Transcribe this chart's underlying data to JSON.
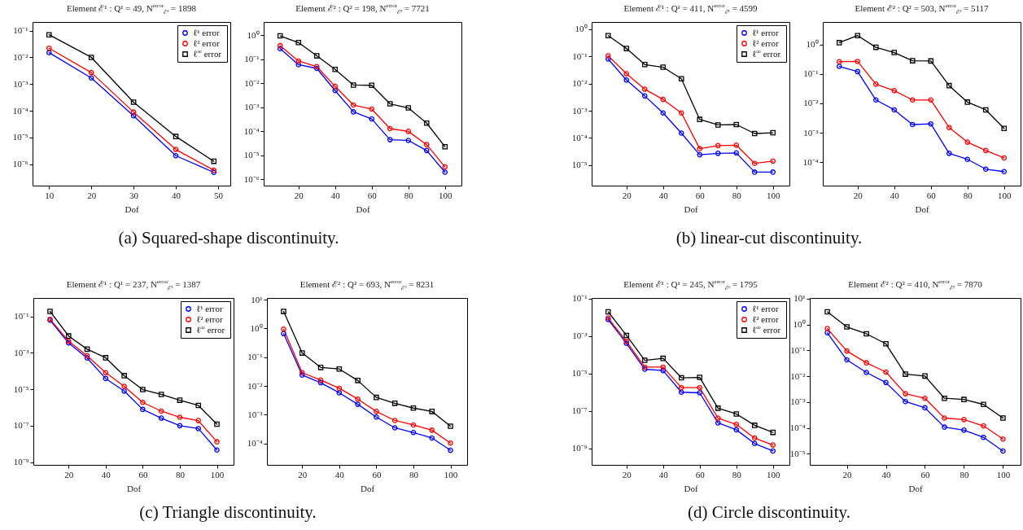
{
  "chart_data": [
    {
      "type": "line",
      "title": "Element ℰ¹ : Q¹ = 49, N$^{error}$$_{ℰ¹}$ = 1898",
      "xlabel": "Dof",
      "annotations": [
        "(a) Squared-shape discontinuity."
      ],
      "log": "y",
      "legend": "top right",
      "line_style": "solid",
      "xlim": [
        6.1,
        52.9
      ],
      "xticks": [
        10,
        20,
        30,
        40,
        50
      ],
      "ylim": [
        1.6e-07,
        0.21
      ],
      "yticks": [
        {
          "value": 1e-06,
          "label": "10⁻⁶"
        },
        {
          "value": 1e-05,
          "label": "10⁻⁵"
        },
        {
          "value": 0.0001,
          "label": "10⁻⁴"
        },
        {
          "value": 0.001,
          "label": "10⁻³"
        },
        {
          "value": 0.01,
          "label": "10⁻²"
        },
        {
          "value": 0.1,
          "label": "10⁻¹"
        }
      ],
      "x": [
        10,
        20,
        30,
        40,
        49
      ],
      "series": [
        {
          "name": "ℓ¹ error",
          "color": "#0000ff",
          "marker": "circle",
          "values": [
            0.015,
            0.0017,
            6.5e-05,
            2.1e-06,
            5e-07
          ]
        },
        {
          "name": "ℓ² error",
          "color": "#ff0000",
          "marker": "circle",
          "values": [
            0.022,
            0.0027,
            9e-05,
            3.6e-06,
            6e-07
          ]
        },
        {
          "name": "ℓ$^{∞}$ error",
          "color": "#000000",
          "marker": "square",
          "values": [
            0.07,
            0.01,
            0.00021,
            1.1e-05,
            1.3e-06
          ]
        }
      ]
    },
    {
      "type": "line",
      "title": "Element ℰ² : Q² = 198, N$^{error}$$_{ℰ²}$ = 7721",
      "xlabel": "Dof",
      "log": "y",
      "line_style": "solid",
      "xlim": [
        1,
        109
      ],
      "xticks": [
        20,
        40,
        60,
        80,
        100
      ],
      "ylim": [
        5.5e-07,
        3.6
      ],
      "yticks": [
        {
          "value": 1e-06,
          "label": "10⁻⁶"
        },
        {
          "value": 1e-05,
          "label": "10⁻⁵"
        },
        {
          "value": 0.0001,
          "label": "10⁻⁴"
        },
        {
          "value": 0.001,
          "label": "10⁻³"
        },
        {
          "value": 0.01,
          "label": "10⁻²"
        },
        {
          "value": 0.1,
          "label": "10⁻¹"
        },
        {
          "value": 1,
          "label": "10⁰"
        }
      ],
      "x": [
        10,
        20,
        30,
        40,
        50,
        60,
        70,
        80,
        90,
        100
      ],
      "series": [
        {
          "color": "#0000ff",
          "marker": "circle",
          "values": [
            0.28,
            0.06,
            0.042,
            0.005,
            0.00065,
            0.00033,
            4.5e-05,
            4.2e-05,
            1.6e-05,
            2e-06
          ]
        },
        {
          "color": "#ff0000",
          "marker": "circle",
          "values": [
            0.37,
            0.085,
            0.05,
            0.0075,
            0.00125,
            0.00085,
            0.00013,
            0.0001,
            2.8e-05,
            3.3e-06
          ]
        },
        {
          "color": "#000000",
          "marker": "square",
          "values": [
            0.95,
            0.5,
            0.14,
            0.038,
            0.0085,
            0.0083,
            0.0014,
            0.00095,
            0.00022,
            2.3e-05
          ]
        }
      ]
    },
    {
      "type": "line",
      "title": "Element ℰ¹ : Q¹ = 411, N$^{error}$$_{ℰ¹}$ = 4599",
      "xlabel": "Dof",
      "annotations": [
        "(b) linear-cut discontinuity."
      ],
      "log": "y",
      "legend": "top right",
      "line_style": "solid",
      "xlim": [
        1,
        109
      ],
      "xticks": [
        20,
        40,
        60,
        80,
        100
      ],
      "ylim": [
        1.75e-06,
        1.85
      ],
      "yticks": [
        {
          "value": 1e-05,
          "label": "10⁻⁵"
        },
        {
          "value": 0.0001,
          "label": "10⁻⁴"
        },
        {
          "value": 0.001,
          "label": "10⁻³"
        },
        {
          "value": 0.01,
          "label": "10⁻²"
        },
        {
          "value": 0.1,
          "label": "10⁻¹"
        },
        {
          "value": 1,
          "label": "10⁰"
        }
      ],
      "x": [
        10,
        20,
        30,
        40,
        50,
        60,
        70,
        80,
        90,
        100
      ],
      "series": [
        {
          "name": "ℓ¹ error",
          "color": "#0000ff",
          "marker": "circle",
          "values": [
            0.08,
            0.0135,
            0.0035,
            0.00083,
            0.00015,
            2.4e-05,
            2.7e-05,
            2.8e-05,
            5.5e-06,
            5.5e-06
          ]
        },
        {
          "name": "ℓ² error",
          "color": "#ff0000",
          "marker": "circle",
          "values": [
            0.105,
            0.023,
            0.0062,
            0.0026,
            0.00083,
            4e-05,
            5.2e-05,
            5.4e-05,
            1.15e-05,
            1.4e-05
          ]
        },
        {
          "name": "ℓ$^{∞}$ error",
          "color": "#000000",
          "marker": "square",
          "values": [
            0.58,
            0.195,
            0.05,
            0.04,
            0.015,
            0.00048,
            0.0003,
            0.00031,
            0.000145,
            0.000155
          ]
        }
      ]
    },
    {
      "type": "line",
      "title": "Element ℰ² : Q² = 503, N$^{error}$$_{ℰ²}$ = 5117",
      "xlabel": "Dof",
      "log": "y",
      "line_style": "solid",
      "xlim": [
        1,
        109
      ],
      "xticks": [
        20,
        40,
        60,
        80,
        100
      ],
      "ylim": [
        1.6e-05,
        5.8
      ],
      "yticks": [
        {
          "value": 0.0001,
          "label": "10⁻⁴"
        },
        {
          "value": 0.001,
          "label": "10⁻³"
        },
        {
          "value": 0.01,
          "label": "10⁻²"
        },
        {
          "value": 0.1,
          "label": "10⁻¹"
        },
        {
          "value": 1,
          "label": "10⁰"
        }
      ],
      "x": [
        10,
        20,
        30,
        40,
        50,
        60,
        70,
        80,
        90,
        100
      ],
      "series": [
        {
          "color": "#0000ff",
          "marker": "circle",
          "values": [
            0.18,
            0.12,
            0.013,
            0.006,
            0.0019,
            0.002,
            0.0002,
            0.000125,
            5.8e-05,
            4.8e-05
          ]
        },
        {
          "color": "#ff0000",
          "marker": "circle",
          "values": [
            0.26,
            0.265,
            0.045,
            0.027,
            0.013,
            0.013,
            0.0015,
            0.00048,
            0.00025,
            0.00014
          ]
        },
        {
          "color": "#000000",
          "marker": "square",
          "values": [
            1.15,
            2.0,
            0.8,
            0.53,
            0.28,
            0.275,
            0.04,
            0.011,
            0.006,
            0.0014
          ]
        }
      ]
    },
    {
      "type": "line",
      "title": "Element ℰ¹ : Q¹ = 237, N$^{error}$$_{ℰ¹}$ = 1387",
      "xlabel": "Dof",
      "annotations": [
        "(c) Triangle discontinuity."
      ],
      "log": "y",
      "legend": "top right",
      "line_style": "solid",
      "xlim": [
        1,
        109
      ],
      "xticks": [
        20,
        40,
        60,
        80,
        100
      ],
      "ylim": [
        7e-10,
        1.04
      ],
      "yticks": [
        {
          "value": 1e-09,
          "label": "10⁻⁹"
        },
        {
          "value": 1e-07,
          "label": "10⁻⁷"
        },
        {
          "value": 1e-05,
          "label": "10⁻⁵"
        },
        {
          "value": 0.001,
          "label": "10⁻³"
        },
        {
          "value": 0.1,
          "label": "10⁻¹"
        }
      ],
      "x": [
        10,
        20,
        30,
        40,
        50,
        60,
        70,
        80,
        90,
        100
      ],
      "series": [
        {
          "name": "ℓ¹ error",
          "color": "#0000ff",
          "marker": "circle",
          "values": [
            0.063,
            0.0035,
            0.00052,
            3.9e-05,
            8e-06,
            7.8e-07,
            2.6e-07,
            1e-07,
            6.9e-08,
            4.6e-09
          ]
        },
        {
          "name": "ℓ² error",
          "color": "#ff0000",
          "marker": "circle",
          "values": [
            0.07,
            0.0044,
            0.00069,
            8.1e-05,
            1.45e-05,
            1.9e-06,
            6.3e-07,
            2.9e-07,
            1.9e-07,
            1.3e-08
          ]
        },
        {
          "name": "ℓ$^{∞}$ error",
          "color": "#000000",
          "marker": "square",
          "values": [
            0.19,
            0.0085,
            0.0016,
            0.00054,
            5.6e-05,
            9.6e-06,
            5.2e-06,
            2.5e-06,
            1.3e-06,
            1.2e-07
          ]
        }
      ]
    },
    {
      "type": "line",
      "title": "Element ℰ² : Q² = 693, N$^{error}$$_{ℰ²}$ = 8231",
      "xlabel": "Dof",
      "log": "y",
      "line_style": "solid",
      "xlim": [
        1,
        109
      ],
      "xticks": [
        20,
        40,
        60,
        80,
        100
      ],
      "ylim": [
        1.8e-05,
        11.5
      ],
      "yticks": [
        {
          "value": 0.0001,
          "label": "10⁻⁴"
        },
        {
          "value": 0.001,
          "label": "10⁻³"
        },
        {
          "value": 0.01,
          "label": "10⁻²"
        },
        {
          "value": 0.1,
          "label": "10⁻¹"
        },
        {
          "value": 1,
          "label": "10⁰"
        },
        {
          "value": 10,
          "label": "10¹"
        }
      ],
      "x": [
        10,
        20,
        30,
        40,
        50,
        60,
        70,
        80,
        90,
        100
      ],
      "series": [
        {
          "color": "#0000ff",
          "marker": "circle",
          "values": [
            0.66,
            0.024,
            0.013,
            0.0058,
            0.0023,
            0.00083,
            0.00035,
            0.00024,
            0.000155,
            5.8e-05
          ]
        },
        {
          "color": "#ff0000",
          "marker": "circle",
          "values": [
            0.95,
            0.029,
            0.016,
            0.0083,
            0.0035,
            0.0013,
            0.00063,
            0.00044,
            0.00029,
            0.000103
          ]
        },
        {
          "color": "#000000",
          "marker": "square",
          "values": [
            3.9,
            0.14,
            0.044,
            0.039,
            0.0155,
            0.004,
            0.0025,
            0.0017,
            0.0013,
            0.0004
          ]
        }
      ]
    },
    {
      "type": "line",
      "title": "Element ℰ¹ : Q¹ = 245, N$^{error}$$_{ℰ¹}$ = 1795",
      "xlabel": "Dof",
      "annotations": [
        "(d) Circle discontinuity."
      ],
      "log": "y",
      "legend": "top right",
      "line_style": "solid",
      "xlim": [
        1,
        109
      ],
      "xticks": [
        20,
        40,
        60,
        80,
        100
      ],
      "ylim": [
        1.3e-10,
        0.11
      ],
      "yticks": [
        {
          "value": 1e-09,
          "label": "10⁻⁹"
        },
        {
          "value": 1e-07,
          "label": "10⁻⁷"
        },
        {
          "value": 1e-05,
          "label": "10⁻⁵"
        },
        {
          "value": 0.001,
          "label": "10⁻³"
        },
        {
          "value": 0.1,
          "label": "10⁻¹"
        }
      ],
      "x": [
        10,
        20,
        30,
        40,
        50,
        60,
        70,
        80,
        90,
        100
      ],
      "series": [
        {
          "name": "ℓ¹ error",
          "color": "#0000ff",
          "marker": "circle",
          "values": [
            0.0077,
            0.00041,
            1.7e-05,
            1.45e-05,
            1e-06,
            9.3e-07,
            2.3e-08,
            9.8e-09,
            1.8e-09,
            7.2e-10
          ]
        },
        {
          "name": "ℓ² error",
          "color": "#ff0000",
          "marker": "circle",
          "values": [
            0.0094,
            0.00052,
            2.2e-05,
            2.2e-05,
            1.75e-06,
            1.75e-06,
            4.1e-08,
            1.9e-08,
            3.5e-09,
            1.5e-09
          ]
        },
        {
          "name": "ℓ$^{∞}$ error",
          "color": "#000000",
          "marker": "square",
          "values": [
            0.02,
            0.0011,
            5.1e-05,
            6.5e-05,
            5.9e-06,
            6.2e-06,
            1.4e-07,
            6.9e-08,
            1.7e-08,
            7.1e-09
          ]
        }
      ]
    },
    {
      "type": "line",
      "title": "Element ℰ² : Q² = 410, N$^{error}$$_{ℰ²}$ = 7870",
      "xlabel": "Dof",
      "log": "y",
      "line_style": "solid",
      "xlim": [
        1,
        109
      ],
      "xticks": [
        20,
        40,
        60,
        80,
        100
      ],
      "ylim": [
        3.7e-06,
        10.7
      ],
      "yticks": [
        {
          "value": 1e-05,
          "label": "10⁻⁵"
        },
        {
          "value": 0.0001,
          "label": "10⁻⁴"
        },
        {
          "value": 0.001,
          "label": "10⁻³"
        },
        {
          "value": 0.01,
          "label": "10⁻²"
        },
        {
          "value": 0.1,
          "label": "10⁻¹"
        },
        {
          "value": 1,
          "label": "10⁰"
        },
        {
          "value": 10,
          "label": "10¹"
        }
      ],
      "x": [
        10,
        20,
        30,
        40,
        50,
        60,
        70,
        80,
        90,
        100
      ],
      "series": [
        {
          "color": "#0000ff",
          "marker": "circle",
          "values": [
            0.48,
            0.043,
            0.014,
            0.0057,
            0.00105,
            0.0006,
            0.000107,
            8.2e-05,
            4.3e-05,
            1.27e-05
          ]
        },
        {
          "color": "#ff0000",
          "marker": "circle",
          "values": [
            0.7,
            0.095,
            0.033,
            0.0145,
            0.0021,
            0.0014,
            0.00024,
            0.00021,
            0.00012,
            3.7e-05
          ]
        },
        {
          "color": "#000000",
          "marker": "square",
          "values": [
            3.1,
            0.81,
            0.44,
            0.18,
            0.012,
            0.0102,
            0.0014,
            0.00126,
            0.00081,
            0.00024
          ]
        }
      ]
    }
  ]
}
